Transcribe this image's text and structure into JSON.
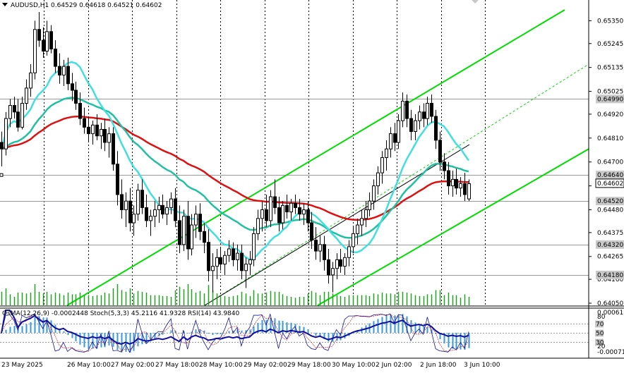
{
  "header": {
    "symbol": "AUDUSD,H1",
    "ohlc": "0.64529 0.64618 0.64521 0.64602"
  },
  "price_axis": {
    "labels": [
      "0.65350",
      "0.65245",
      "0.65135",
      "0.65025",
      "0.64920",
      "0.64810",
      "0.64700",
      "0.64590",
      "0.64480",
      "0.64375",
      "0.64265",
      "0.64160",
      "0.64050"
    ],
    "highlight_labels": [
      {
        "text": "0.64990",
        "value": 0.6499,
        "bg": "#c8c8c8"
      },
      {
        "text": "0.64640",
        "value": 0.6464,
        "bg": "#c8c8c8"
      },
      {
        "text": "0.64602",
        "value": 0.64602,
        "bg": "#ffffff"
      },
      {
        "text": "0.64520",
        "value": 0.6452,
        "bg": "#c8c8c8"
      },
      {
        "text": "0.64320",
        "value": 0.6432,
        "bg": "#c8c8c8"
      },
      {
        "text": "0.64180",
        "value": 0.6418,
        "bg": "#c8c8c8"
      }
    ]
  },
  "time_axis": [
    "23 May 2025",
    "26 May 10:00",
    "27 May 02:00",
    "27 May 18:00",
    "28 May 10:00",
    "29 May 02:00",
    "29 May 18:00",
    "30 May 10:00",
    "2 Jun 02:00",
    "2 Jun 18:00",
    "3 Jun 10:00"
  ],
  "indicator_panel": {
    "title": "OsMA(12,26,9) -0.0002448  Stoch(5,3,3) 45.2116 41.9328  RSI(14) 43.9840",
    "scale_top": "0.000615",
    "scale_bottom": "-0.000715",
    "levels": [
      "70",
      "50",
      "30"
    ],
    "level_side": [
      "80",
      "20"
    ]
  },
  "colors": {
    "bull_candle": "#ffffff",
    "bear_candle": "#000000",
    "channel": "#00dd00",
    "ma_fast": "#40e0e0",
    "ma_mid": "#20c0a0",
    "ma_slow": "#dd1111",
    "volume": "#20a020",
    "osma": "#3a9ad9",
    "stoch_main": "#1010a0",
    "rsi": "#1010a0"
  },
  "chart_data": {
    "type": "candlestick",
    "title": "AUDUSD,H1",
    "ylim": [
      0.6405,
      0.654
    ],
    "candles": [
      {
        "o": 0.6479,
        "h": 0.6484,
        "l": 0.6468,
        "c": 0.6476
      },
      {
        "o": 0.6476,
        "h": 0.6493,
        "l": 0.6473,
        "c": 0.649
      },
      {
        "o": 0.649,
        "h": 0.6499,
        "l": 0.6486,
        "c": 0.6496
      },
      {
        "o": 0.6496,
        "h": 0.65,
        "l": 0.649,
        "c": 0.6493
      },
      {
        "o": 0.6493,
        "h": 0.6499,
        "l": 0.6484,
        "c": 0.6486
      },
      {
        "o": 0.6486,
        "h": 0.65,
        "l": 0.6485,
        "c": 0.6497
      },
      {
        "o": 0.6497,
        "h": 0.6508,
        "l": 0.6494,
        "c": 0.6504
      },
      {
        "o": 0.6504,
        "h": 0.6515,
        "l": 0.65,
        "c": 0.6511
      },
      {
        "o": 0.6511,
        "h": 0.6535,
        "l": 0.6508,
        "c": 0.6531
      },
      {
        "o": 0.6531,
        "h": 0.6539,
        "l": 0.6523,
        "c": 0.6526
      },
      {
        "o": 0.6526,
        "h": 0.6532,
        "l": 0.6518,
        "c": 0.6521
      },
      {
        "o": 0.6521,
        "h": 0.6535,
        "l": 0.6519,
        "c": 0.653
      },
      {
        "o": 0.653,
        "h": 0.6533,
        "l": 0.652,
        "c": 0.6522
      },
      {
        "o": 0.6522,
        "h": 0.6526,
        "l": 0.6511,
        "c": 0.6514
      },
      {
        "o": 0.6514,
        "h": 0.652,
        "l": 0.6506,
        "c": 0.651
      },
      {
        "o": 0.651,
        "h": 0.6517,
        "l": 0.6505,
        "c": 0.6514
      },
      {
        "o": 0.6514,
        "h": 0.6518,
        "l": 0.6503,
        "c": 0.6506
      },
      {
        "o": 0.6506,
        "h": 0.6511,
        "l": 0.6498,
        "c": 0.6503
      },
      {
        "o": 0.6503,
        "h": 0.6507,
        "l": 0.6494,
        "c": 0.6497
      },
      {
        "o": 0.6497,
        "h": 0.6502,
        "l": 0.6487,
        "c": 0.649
      },
      {
        "o": 0.649,
        "h": 0.6495,
        "l": 0.6483,
        "c": 0.6486
      },
      {
        "o": 0.6486,
        "h": 0.6491,
        "l": 0.6479,
        "c": 0.6483
      },
      {
        "o": 0.6483,
        "h": 0.6489,
        "l": 0.6478,
        "c": 0.6487
      },
      {
        "o": 0.6487,
        "h": 0.6492,
        "l": 0.648,
        "c": 0.6482
      },
      {
        "o": 0.6482,
        "h": 0.6488,
        "l": 0.6476,
        "c": 0.6485
      },
      {
        "o": 0.6485,
        "h": 0.649,
        "l": 0.6475,
        "c": 0.6479
      },
      {
        "o": 0.6479,
        "h": 0.6486,
        "l": 0.6472,
        "c": 0.6483
      },
      {
        "o": 0.6483,
        "h": 0.6486,
        "l": 0.6466,
        "c": 0.6469
      },
      {
        "o": 0.6469,
        "h": 0.6475,
        "l": 0.645,
        "c": 0.6455
      },
      {
        "o": 0.6455,
        "h": 0.6462,
        "l": 0.6444,
        "c": 0.6448
      },
      {
        "o": 0.6448,
        "h": 0.6456,
        "l": 0.644,
        "c": 0.6452
      },
      {
        "o": 0.6452,
        "h": 0.6458,
        "l": 0.6438,
        "c": 0.6442
      },
      {
        "o": 0.6442,
        "h": 0.645,
        "l": 0.6436,
        "c": 0.6446
      },
      {
        "o": 0.6446,
        "h": 0.646,
        "l": 0.6443,
        "c": 0.6457
      },
      {
        "o": 0.6457,
        "h": 0.6462,
        "l": 0.6446,
        "c": 0.6449
      },
      {
        "o": 0.6449,
        "h": 0.6455,
        "l": 0.644,
        "c": 0.6443
      },
      {
        "o": 0.6443,
        "h": 0.6448,
        "l": 0.6436,
        "c": 0.6445
      },
      {
        "o": 0.6445,
        "h": 0.6452,
        "l": 0.644,
        "c": 0.6448
      },
      {
        "o": 0.6448,
        "h": 0.6454,
        "l": 0.6442,
        "c": 0.645
      },
      {
        "o": 0.645,
        "h": 0.6455,
        "l": 0.6444,
        "c": 0.6446
      },
      {
        "o": 0.6446,
        "h": 0.6452,
        "l": 0.6441,
        "c": 0.6449
      },
      {
        "o": 0.6449,
        "h": 0.6456,
        "l": 0.6446,
        "c": 0.6453
      },
      {
        "o": 0.6453,
        "h": 0.6458,
        "l": 0.644,
        "c": 0.6443
      },
      {
        "o": 0.6443,
        "h": 0.645,
        "l": 0.6428,
        "c": 0.6432
      },
      {
        "o": 0.6432,
        "h": 0.6448,
        "l": 0.6429,
        "c": 0.6445
      },
      {
        "o": 0.6445,
        "h": 0.6452,
        "l": 0.6425,
        "c": 0.643
      },
      {
        "o": 0.643,
        "h": 0.6446,
        "l": 0.6427,
        "c": 0.6441
      },
      {
        "o": 0.6441,
        "h": 0.645,
        "l": 0.6435,
        "c": 0.6446
      },
      {
        "o": 0.6446,
        "h": 0.6451,
        "l": 0.6434,
        "c": 0.6438
      },
      {
        "o": 0.6438,
        "h": 0.6442,
        "l": 0.6428,
        "c": 0.6433
      },
      {
        "o": 0.6433,
        "h": 0.6439,
        "l": 0.6415,
        "c": 0.642
      },
      {
        "o": 0.642,
        "h": 0.6428,
        "l": 0.641,
        "c": 0.6422
      },
      {
        "o": 0.6422,
        "h": 0.643,
        "l": 0.6416,
        "c": 0.6426
      },
      {
        "o": 0.6426,
        "h": 0.6431,
        "l": 0.642,
        "c": 0.6423
      },
      {
        "o": 0.6423,
        "h": 0.6429,
        "l": 0.6418,
        "c": 0.6427
      },
      {
        "o": 0.6427,
        "h": 0.6434,
        "l": 0.6424,
        "c": 0.643
      },
      {
        "o": 0.643,
        "h": 0.6433,
        "l": 0.6422,
        "c": 0.6425
      },
      {
        "o": 0.6425,
        "h": 0.6432,
        "l": 0.642,
        "c": 0.6428
      },
      {
        "o": 0.6428,
        "h": 0.6432,
        "l": 0.6416,
        "c": 0.642
      },
      {
        "o": 0.642,
        "h": 0.6426,
        "l": 0.6412,
        "c": 0.6423
      },
      {
        "o": 0.6423,
        "h": 0.6429,
        "l": 0.6418,
        "c": 0.6425
      },
      {
        "o": 0.6425,
        "h": 0.644,
        "l": 0.6422,
        "c": 0.6437
      },
      {
        "o": 0.6437,
        "h": 0.6448,
        "l": 0.6434,
        "c": 0.6444
      },
      {
        "o": 0.6444,
        "h": 0.6452,
        "l": 0.6438,
        "c": 0.6448
      },
      {
        "o": 0.6448,
        "h": 0.6455,
        "l": 0.644,
        "c": 0.6443
      },
      {
        "o": 0.6443,
        "h": 0.6457,
        "l": 0.644,
        "c": 0.6454
      },
      {
        "o": 0.6454,
        "h": 0.6462,
        "l": 0.6446,
        "c": 0.6449
      },
      {
        "o": 0.6449,
        "h": 0.6454,
        "l": 0.6438,
        "c": 0.6442
      },
      {
        "o": 0.6442,
        "h": 0.6452,
        "l": 0.6439,
        "c": 0.645
      },
      {
        "o": 0.645,
        "h": 0.6455,
        "l": 0.6444,
        "c": 0.6447
      },
      {
        "o": 0.6447,
        "h": 0.6453,
        "l": 0.6443,
        "c": 0.6451
      },
      {
        "o": 0.6451,
        "h": 0.6455,
        "l": 0.6446,
        "c": 0.6449
      },
      {
        "o": 0.6449,
        "h": 0.6453,
        "l": 0.6443,
        "c": 0.6446
      },
      {
        "o": 0.6446,
        "h": 0.6451,
        "l": 0.6441,
        "c": 0.6448
      },
      {
        "o": 0.6448,
        "h": 0.6452,
        "l": 0.6438,
        "c": 0.6442
      },
      {
        "o": 0.6442,
        "h": 0.6447,
        "l": 0.643,
        "c": 0.6434
      },
      {
        "o": 0.6434,
        "h": 0.644,
        "l": 0.6425,
        "c": 0.6429
      },
      {
        "o": 0.6429,
        "h": 0.6436,
        "l": 0.6424,
        "c": 0.6432
      },
      {
        "o": 0.6432,
        "h": 0.6436,
        "l": 0.642,
        "c": 0.6425
      },
      {
        "o": 0.6425,
        "h": 0.643,
        "l": 0.6414,
        "c": 0.6418
      },
      {
        "o": 0.6418,
        "h": 0.6424,
        "l": 0.641,
        "c": 0.6421
      },
      {
        "o": 0.6421,
        "h": 0.6428,
        "l": 0.6416,
        "c": 0.6425
      },
      {
        "o": 0.6425,
        "h": 0.643,
        "l": 0.6419,
        "c": 0.6422
      },
      {
        "o": 0.6422,
        "h": 0.6428,
        "l": 0.6418,
        "c": 0.6426
      },
      {
        "o": 0.6426,
        "h": 0.6434,
        "l": 0.6422,
        "c": 0.6431
      },
      {
        "o": 0.6431,
        "h": 0.644,
        "l": 0.6428,
        "c": 0.6437
      },
      {
        "o": 0.6437,
        "h": 0.6444,
        "l": 0.6432,
        "c": 0.6441
      },
      {
        "o": 0.6441,
        "h": 0.6448,
        "l": 0.6436,
        "c": 0.6444
      },
      {
        "o": 0.6444,
        "h": 0.6452,
        "l": 0.644,
        "c": 0.6448
      },
      {
        "o": 0.6448,
        "h": 0.6456,
        "l": 0.6445,
        "c": 0.6452
      },
      {
        "o": 0.6452,
        "h": 0.6462,
        "l": 0.6448,
        "c": 0.6459
      },
      {
        "o": 0.6459,
        "h": 0.6468,
        "l": 0.6455,
        "c": 0.6465
      },
      {
        "o": 0.6465,
        "h": 0.6475,
        "l": 0.646,
        "c": 0.6472
      },
      {
        "o": 0.6472,
        "h": 0.648,
        "l": 0.6466,
        "c": 0.6476
      },
      {
        "o": 0.6476,
        "h": 0.6486,
        "l": 0.6472,
        "c": 0.6483
      },
      {
        "o": 0.6483,
        "h": 0.6488,
        "l": 0.6475,
        "c": 0.6479
      },
      {
        "o": 0.6479,
        "h": 0.6492,
        "l": 0.6476,
        "c": 0.6489
      },
      {
        "o": 0.6489,
        "h": 0.6502,
        "l": 0.6486,
        "c": 0.6498
      },
      {
        "o": 0.6498,
        "h": 0.6501,
        "l": 0.6486,
        "c": 0.649
      },
      {
        "o": 0.649,
        "h": 0.6494,
        "l": 0.648,
        "c": 0.6484
      },
      {
        "o": 0.6484,
        "h": 0.6492,
        "l": 0.648,
        "c": 0.6489
      },
      {
        "o": 0.6489,
        "h": 0.6496,
        "l": 0.6485,
        "c": 0.6493
      },
      {
        "o": 0.6493,
        "h": 0.6497,
        "l": 0.6486,
        "c": 0.649
      },
      {
        "o": 0.649,
        "h": 0.65,
        "l": 0.6487,
        "c": 0.6497
      },
      {
        "o": 0.6497,
        "h": 0.6501,
        "l": 0.6488,
        "c": 0.6491
      },
      {
        "o": 0.6491,
        "h": 0.6494,
        "l": 0.6476,
        "c": 0.648
      },
      {
        "o": 0.648,
        "h": 0.6484,
        "l": 0.6466,
        "c": 0.647
      },
      {
        "o": 0.647,
        "h": 0.6474,
        "l": 0.6462,
        "c": 0.6466
      },
      {
        "o": 0.6466,
        "h": 0.647,
        "l": 0.6455,
        "c": 0.6459
      },
      {
        "o": 0.6459,
        "h": 0.6466,
        "l": 0.6454,
        "c": 0.6462
      },
      {
        "o": 0.6462,
        "h": 0.6467,
        "l": 0.6455,
        "c": 0.6458
      },
      {
        "o": 0.6458,
        "h": 0.6463,
        "l": 0.6454,
        "c": 0.646
      },
      {
        "o": 0.646,
        "h": 0.6465,
        "l": 0.6452,
        "c": 0.6455
      },
      {
        "o": 0.6453,
        "h": 0.6462,
        "l": 0.6452,
        "c": 0.646
      }
    ]
  }
}
